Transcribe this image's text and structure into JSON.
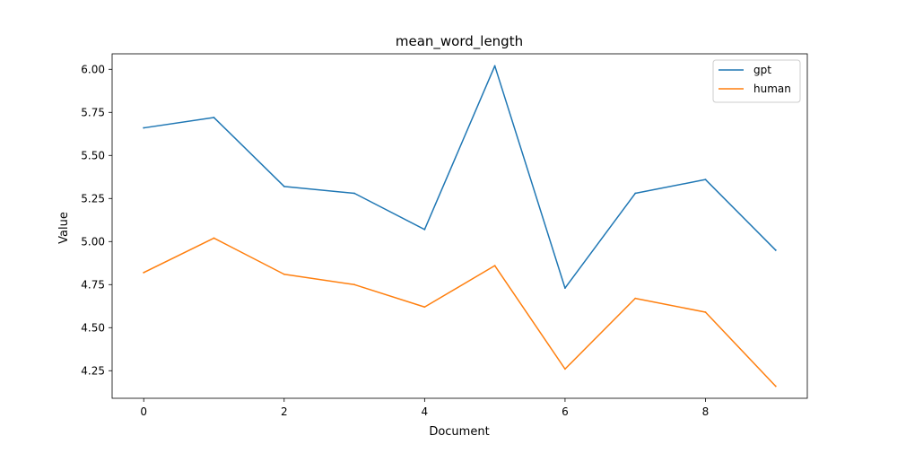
{
  "chart_data": {
    "type": "line",
    "title": "mean_word_length",
    "xlabel": "Document",
    "ylabel": "Value",
    "x": [
      0,
      1,
      2,
      3,
      4,
      5,
      6,
      7,
      8,
      9
    ],
    "series": [
      {
        "name": "gpt",
        "color": "#1f77b4",
        "values": [
          5.66,
          5.72,
          5.32,
          5.28,
          5.07,
          6.02,
          4.73,
          5.28,
          5.36,
          4.95
        ]
      },
      {
        "name": "human",
        "color": "#ff7f0e",
        "values": [
          4.82,
          5.02,
          4.81,
          4.75,
          4.62,
          4.86,
          4.26,
          4.67,
          4.59,
          4.16
        ]
      }
    ],
    "xlim": [
      -0.45,
      9.45
    ],
    "ylim": [
      4.09,
      6.09
    ],
    "xticks": [
      0,
      2,
      4,
      6,
      8
    ],
    "xtick_labels": [
      "0",
      "2",
      "4",
      "6",
      "8"
    ],
    "yticks": [
      4.25,
      4.5,
      4.75,
      5.0,
      5.25,
      5.5,
      5.75,
      6.0
    ],
    "ytick_labels": [
      "4.25",
      "4.50",
      "4.75",
      "5.00",
      "5.25",
      "5.50",
      "5.75",
      "6.00"
    ],
    "grid": false,
    "legend_position": "top-right"
  }
}
